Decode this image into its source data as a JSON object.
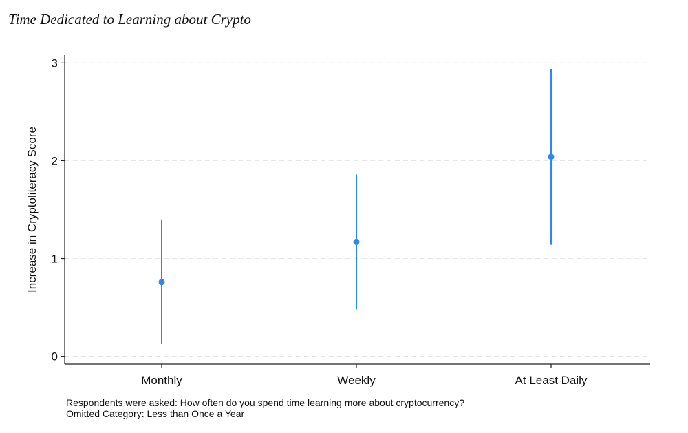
{
  "chart_data": {
    "type": "scatter",
    "title": "Time Dedicated to Learning about Crypto",
    "ylabel": "Increase in Cryptoliteracy Score",
    "xlabel": "",
    "categories": [
      "Monthly",
      "Weekly",
      "At Least Daily"
    ],
    "estimates": [
      0.76,
      1.17,
      2.04
    ],
    "ci_lower": [
      0.13,
      0.48,
      1.14
    ],
    "ci_upper": [
      1.4,
      1.86,
      2.94
    ],
    "ylim": [
      -0.08,
      3.08
    ],
    "yticks": [
      0,
      1,
      2,
      3
    ],
    "grid": true,
    "marker_color": "#2e86f0",
    "notes": [
      "Respondents were asked: How often do you spend time learning more about cryptocurrency?",
      "Omitted Category: Less than Once a Year"
    ]
  }
}
